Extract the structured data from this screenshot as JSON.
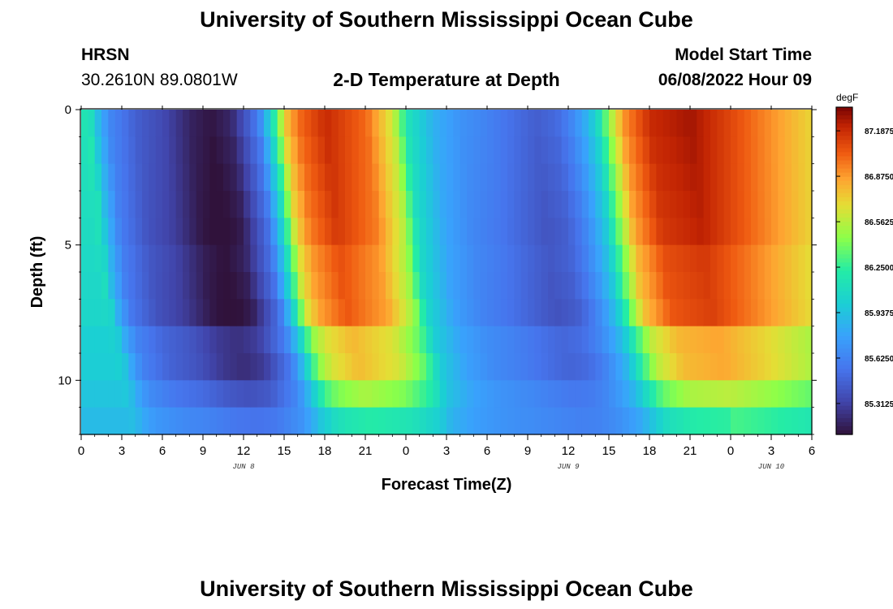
{
  "page": {
    "title": "University of Southern Mississippi Ocean Cube",
    "footer_title": "University of Southern Mississippi Ocean Cube"
  },
  "station": {
    "name": "HRSN",
    "coords": "30.2610N  89.0801W"
  },
  "model": {
    "label": "Model Start Time",
    "start": "06/08/2022 Hour 09"
  },
  "chart_data": {
    "type": "heatmap",
    "title": "2-D Temperature at Depth",
    "xlabel": "Forecast Time(Z)",
    "ylabel": "Depth (ft)",
    "x_hours_range": [
      0,
      54
    ],
    "y_depth_range": [
      0,
      12
    ],
    "x_ticks": [
      {
        "h": 0,
        "label": "0"
      },
      {
        "h": 3,
        "label": "3"
      },
      {
        "h": 6,
        "label": "6"
      },
      {
        "h": 9,
        "label": "9"
      },
      {
        "h": 12,
        "label": "12"
      },
      {
        "h": 15,
        "label": "15"
      },
      {
        "h": 18,
        "label": "18"
      },
      {
        "h": 21,
        "label": "21"
      },
      {
        "h": 24,
        "label": "0"
      },
      {
        "h": 27,
        "label": "3"
      },
      {
        "h": 30,
        "label": "6"
      },
      {
        "h": 33,
        "label": "9"
      },
      {
        "h": 36,
        "label": "12"
      },
      {
        "h": 39,
        "label": "15"
      },
      {
        "h": 42,
        "label": "18"
      },
      {
        "h": 45,
        "label": "21"
      },
      {
        "h": 48,
        "label": "0"
      },
      {
        "h": 51,
        "label": "3"
      },
      {
        "h": 54,
        "label": "6"
      }
    ],
    "date_labels": [
      {
        "h": 12,
        "label": "JUN 8"
      },
      {
        "h": 36,
        "label": "JUN 9"
      },
      {
        "h": 51,
        "label": "JUN 10"
      }
    ],
    "y_ticks": [
      {
        "d": 0,
        "label": "0"
      },
      {
        "d": 5,
        "label": "5"
      },
      {
        "d": 10,
        "label": "10"
      }
    ],
    "colorbar": {
      "unit": "degF",
      "min": 85.1,
      "max": 87.35,
      "labels": [
        "87.1875",
        "86.8750",
        "86.5625",
        "86.2500",
        "85.9375",
        "85.6250",
        "85.3125"
      ],
      "levels": [
        87.1875,
        86.875,
        86.5625,
        86.25,
        85.9375,
        85.625,
        85.3125
      ]
    },
    "depth_levels_ft": [
      0.5,
      1.5,
      2.5,
      3.5,
      4.5,
      5.5,
      6.5,
      7.5,
      8.5,
      9.5,
      10.5,
      11.5
    ],
    "columns_per_hour": 2,
    "surface_temperature_keyframes_degF": [
      [
        0,
        86.15
      ],
      [
        0.5,
        86.2
      ],
      [
        1,
        85.95
      ],
      [
        1.5,
        85.8
      ],
      [
        2,
        85.65
      ],
      [
        4,
        85.45
      ],
      [
        6,
        85.35
      ],
      [
        8,
        85.18
      ],
      [
        9.5,
        85.12
      ],
      [
        11,
        85.2
      ],
      [
        12,
        85.4
      ],
      [
        13,
        85.6
      ],
      [
        14,
        86.1
      ],
      [
        15,
        86.75
      ],
      [
        16,
        87.0
      ],
      [
        18,
        87.2
      ],
      [
        21,
        87.0
      ],
      [
        23,
        86.6
      ],
      [
        24,
        86.15
      ],
      [
        25,
        86.0
      ],
      [
        26,
        85.85
      ],
      [
        28,
        85.7
      ],
      [
        30,
        85.62
      ],
      [
        32,
        85.52
      ],
      [
        33.5,
        85.45
      ],
      [
        35,
        85.5
      ],
      [
        36,
        85.62
      ],
      [
        37,
        85.8
      ],
      [
        38,
        86.05
      ],
      [
        39,
        86.5
      ],
      [
        40,
        86.9
      ],
      [
        42,
        87.2
      ],
      [
        45,
        87.28
      ],
      [
        48,
        87.1
      ],
      [
        51,
        86.9
      ],
      [
        54,
        86.7
      ]
    ]
  }
}
